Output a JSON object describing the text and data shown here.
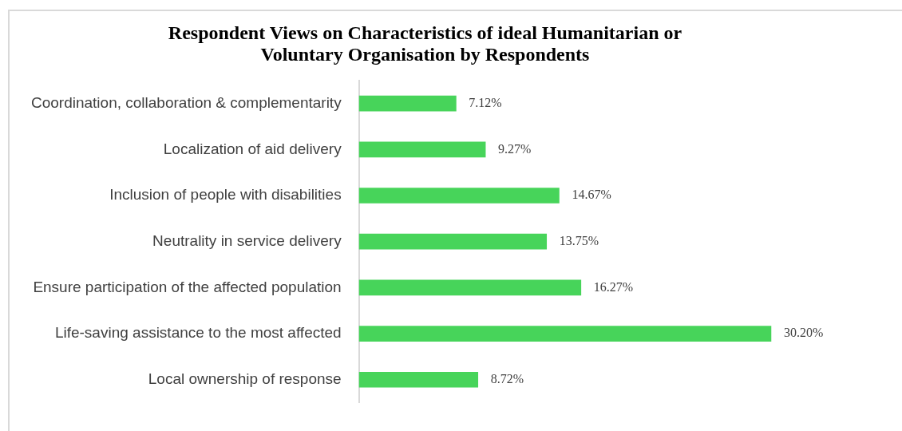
{
  "chart_data": {
    "type": "bar",
    "orientation": "horizontal",
    "title": "Respondent Views on Characteristics of ideal Humanitarian or Voluntary Organisation by Respondents",
    "categories": [
      "Coordination, collaboration & complementarity",
      "Localization of aid delivery",
      "Inclusion of people with disabilities",
      "Neutrality in service delivery",
      "Ensure participation of the affected population",
      "Life-saving assistance to the most affected",
      "Local ownership of response"
    ],
    "values": [
      7.12,
      9.27,
      14.67,
      13.75,
      16.27,
      30.2,
      8.72
    ],
    "value_labels": [
      "7.12%",
      "9.27%",
      "14.67%",
      "13.75%",
      "16.27%",
      "30.20%",
      "8.72%"
    ],
    "color": "#47d45a",
    "legend": false
  }
}
